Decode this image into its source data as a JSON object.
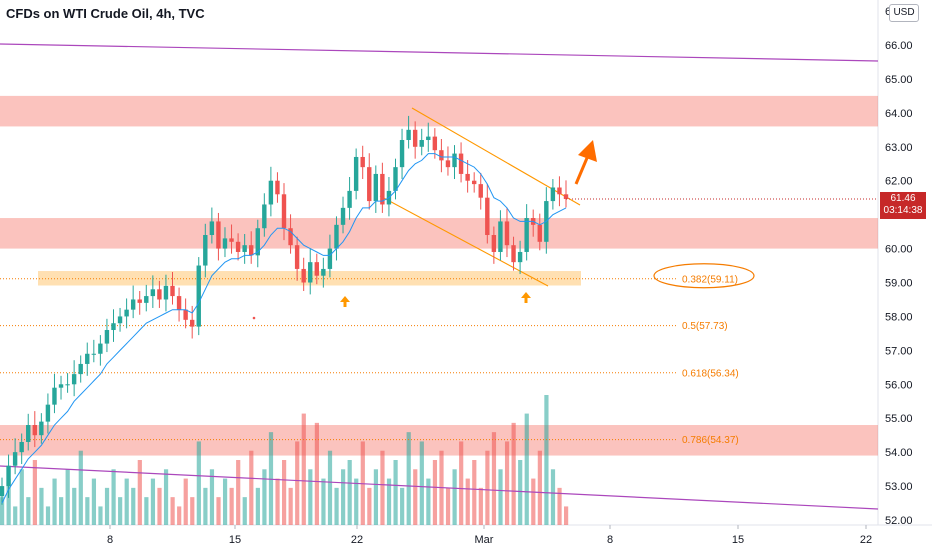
{
  "header": {
    "title": "CFDs on WTI Crude Oil, 4h, TVC",
    "currency": "USD"
  },
  "price_tag": {
    "price": "61.46",
    "countdown": "03:14:38"
  },
  "chart_data": {
    "type": "candlestick",
    "title": "CFDs on WTI Crude Oil, 4h, TVC",
    "y_axis": {
      "position": "right",
      "ticks": [
        52.0,
        53.0,
        54.0,
        55.0,
        56.0,
        57.0,
        58.0,
        59.0,
        60.0,
        61.0,
        62.0,
        63.0,
        64.0,
        65.0,
        66.0
      ],
      "top_partial_label": "67"
    },
    "x_axis": {
      "ticks": [
        "8",
        "15",
        "22",
        "Mar",
        "8",
        "15",
        "22"
      ]
    },
    "last_price": 61.46,
    "resistance_zones": [
      {
        "from": 63.6,
        "to": 64.5
      },
      {
        "from": 60.0,
        "to": 60.9
      },
      {
        "from": 53.9,
        "to": 54.8
      }
    ],
    "support_zone": {
      "from": 59.0,
      "to": 59.25
    },
    "fib_levels": [
      {
        "ratio": "0.382",
        "price": 59.11,
        "label": "0.382(59.11)"
      },
      {
        "ratio": "0.5",
        "price": 57.73,
        "label": "0.5(57.73)"
      },
      {
        "ratio": "0.618",
        "price": 56.34,
        "label": "0.618(56.34)"
      },
      {
        "ratio": "0.786",
        "price": 54.37,
        "label": "0.786(54.37)"
      }
    ],
    "candles_close": [
      53.0,
      53.6,
      54.0,
      54.3,
      54.8,
      54.5,
      54.9,
      55.4,
      55.9,
      56.0,
      56.0,
      56.3,
      56.6,
      56.9,
      56.9,
      57.2,
      57.6,
      57.8,
      58.0,
      58.2,
      58.5,
      58.4,
      58.6,
      58.8,
      58.5,
      58.9,
      58.6,
      58.2,
      57.9,
      57.7,
      59.5,
      60.4,
      60.8,
      60.0,
      60.3,
      60.2,
      59.9,
      60.1,
      59.8,
      60.6,
      61.3,
      62.0,
      61.6,
      60.6,
      60.1,
      59.4,
      59.0,
      59.6,
      59.2,
      59.4,
      60.0,
      60.7,
      61.2,
      61.7,
      62.7,
      62.4,
      61.4,
      62.2,
      61.3,
      61.7,
      62.4,
      63.2,
      63.5,
      63.0,
      63.2,
      63.3,
      62.9,
      62.6,
      62.4,
      62.8,
      62.2,
      62.0,
      61.9,
      61.5,
      60.4,
      59.9,
      60.8,
      60.1,
      59.6,
      59.9,
      60.9,
      60.7,
      60.2,
      61.4,
      61.8,
      61.6,
      61.46
    ],
    "ema_line": [
      52.5,
      52.9,
      53.2,
      53.5,
      53.8,
      54.0,
      54.2,
      54.5,
      54.8,
      55.0,
      55.2,
      55.5,
      55.7,
      55.9,
      56.1,
      56.3,
      56.6,
      56.8,
      57.0,
      57.2,
      57.4,
      57.6,
      57.8,
      57.9,
      58.0,
      58.1,
      58.2,
      58.2,
      58.2,
      58.1,
      58.4,
      58.8,
      59.2,
      59.4,
      59.6,
      59.7,
      59.7,
      59.8,
      59.8,
      59.9,
      60.1,
      60.4,
      60.6,
      60.6,
      60.5,
      60.3,
      60.1,
      60.0,
      59.9,
      59.8,
      59.8,
      60.0,
      60.2,
      60.5,
      60.9,
      61.2,
      61.2,
      61.4,
      61.4,
      61.5,
      61.7,
      62.0,
      62.3,
      62.5,
      62.6,
      62.8,
      62.8,
      62.7,
      62.7,
      62.7,
      62.6,
      62.5,
      62.4,
      62.2,
      61.9,
      61.5,
      61.4,
      61.2,
      60.9,
      60.8,
      60.8,
      60.8,
      60.7,
      60.8,
      61.0,
      61.1,
      61.2
    ],
    "volume": [
      3,
      5,
      2,
      6,
      3,
      7,
      4,
      2,
      5,
      3,
      6,
      4,
      8,
      3,
      5,
      2,
      4,
      6,
      3,
      5,
      4,
      7,
      3,
      5,
      4,
      6,
      3,
      2,
      5,
      3,
      9,
      4,
      6,
      3,
      5,
      4,
      7,
      3,
      8,
      4,
      6,
      10,
      5,
      7,
      4,
      9,
      12,
      6,
      11,
      5,
      8,
      4,
      6,
      7,
      5,
      9,
      4,
      6,
      8,
      5,
      7,
      4,
      10,
      6,
      9,
      5,
      7,
      8,
      4,
      6,
      9,
      5,
      7,
      4,
      8,
      10,
      6,
      9,
      11,
      7,
      12,
      5,
      8,
      14,
      6,
      4,
      2
    ],
    "overlays": {
      "upper_trendline": "descending purple line near 66",
      "lower_trendline": "descending purple line near 53.6",
      "channel": "descending orange parallel channel",
      "arrows": [
        "up arrow under swing low",
        "up arrow under second low",
        "large up arrow breakout"
      ]
    }
  }
}
